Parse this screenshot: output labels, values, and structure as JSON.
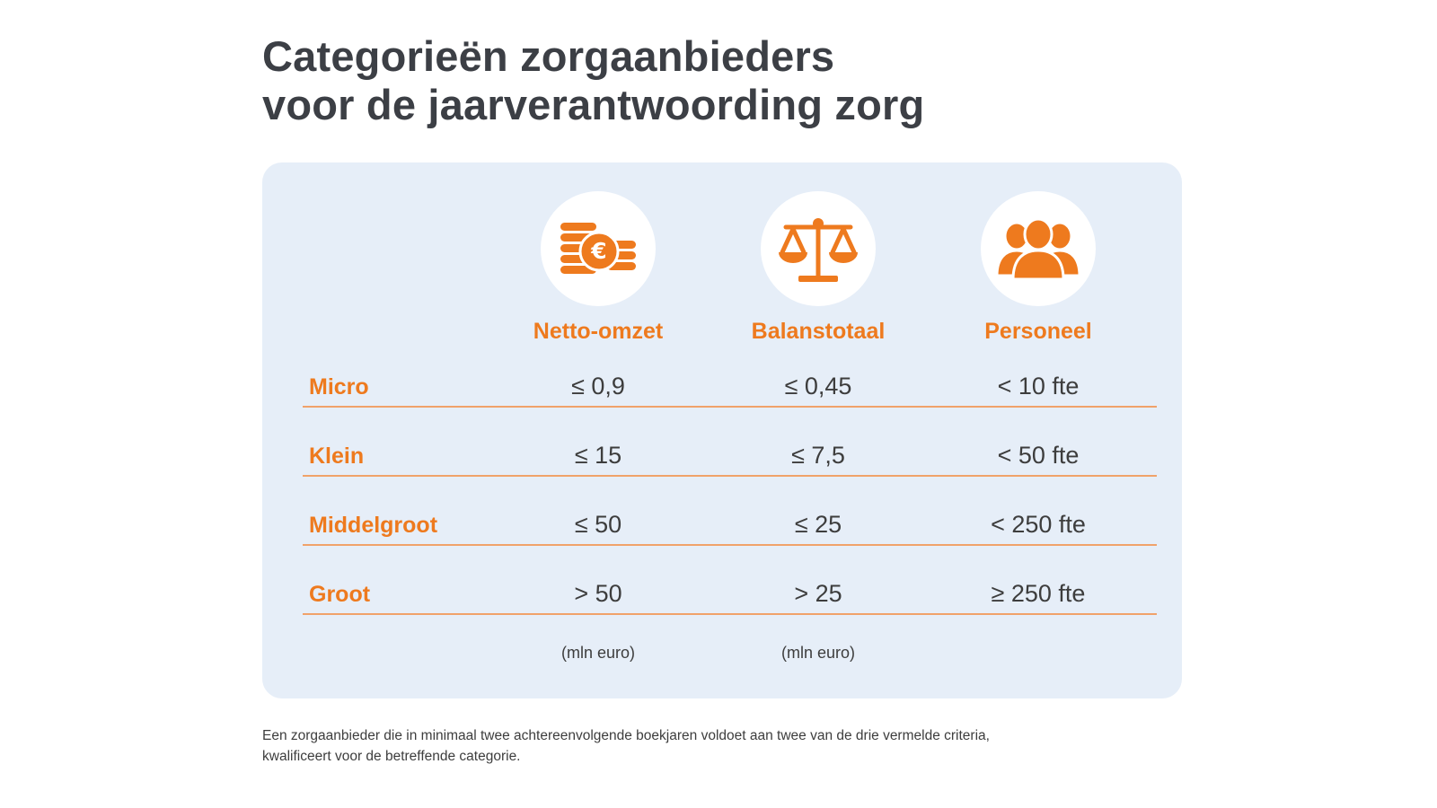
{
  "title": {
    "line1": "Categorieën zorgaanbieders",
    "line2": "voor de jaarverantwoording zorg"
  },
  "columns": [
    {
      "label": "Netto-omzet",
      "icon": "euro-coins-icon",
      "unit": "(mln euro)"
    },
    {
      "label": "Balanstotaal",
      "icon": "balance-scale-icon",
      "unit": "(mln euro)"
    },
    {
      "label": "Personeel",
      "icon": "people-group-icon",
      "unit": ""
    }
  ],
  "rows": [
    {
      "label": "Micro",
      "values": [
        "≤ 0,9",
        "≤ 0,45",
        "< 10 fte"
      ]
    },
    {
      "label": "Klein",
      "values": [
        "≤ 15",
        "≤ 7,5",
        "< 50 fte"
      ]
    },
    {
      "label": "Middelgroot",
      "values": [
        "≤ 50",
        "≤ 25",
        "< 250 fte"
      ]
    },
    {
      "label": "Groot",
      "values": [
        "> 50",
        "> 25",
        "≥ 250 fte"
      ]
    }
  ],
  "footnote": {
    "line1": "Een zorgaanbieder die in minimaal twee achtereenvolgende boekjaren voldoet aan twee van de drie vermelde criteria,",
    "line2": "kwalificeert voor de betreffende categorie."
  },
  "colors": {
    "accent": "#ee7a1e",
    "panel": "#e6eef8",
    "text": "#3d3d3d",
    "rule": "#f0a26a"
  }
}
